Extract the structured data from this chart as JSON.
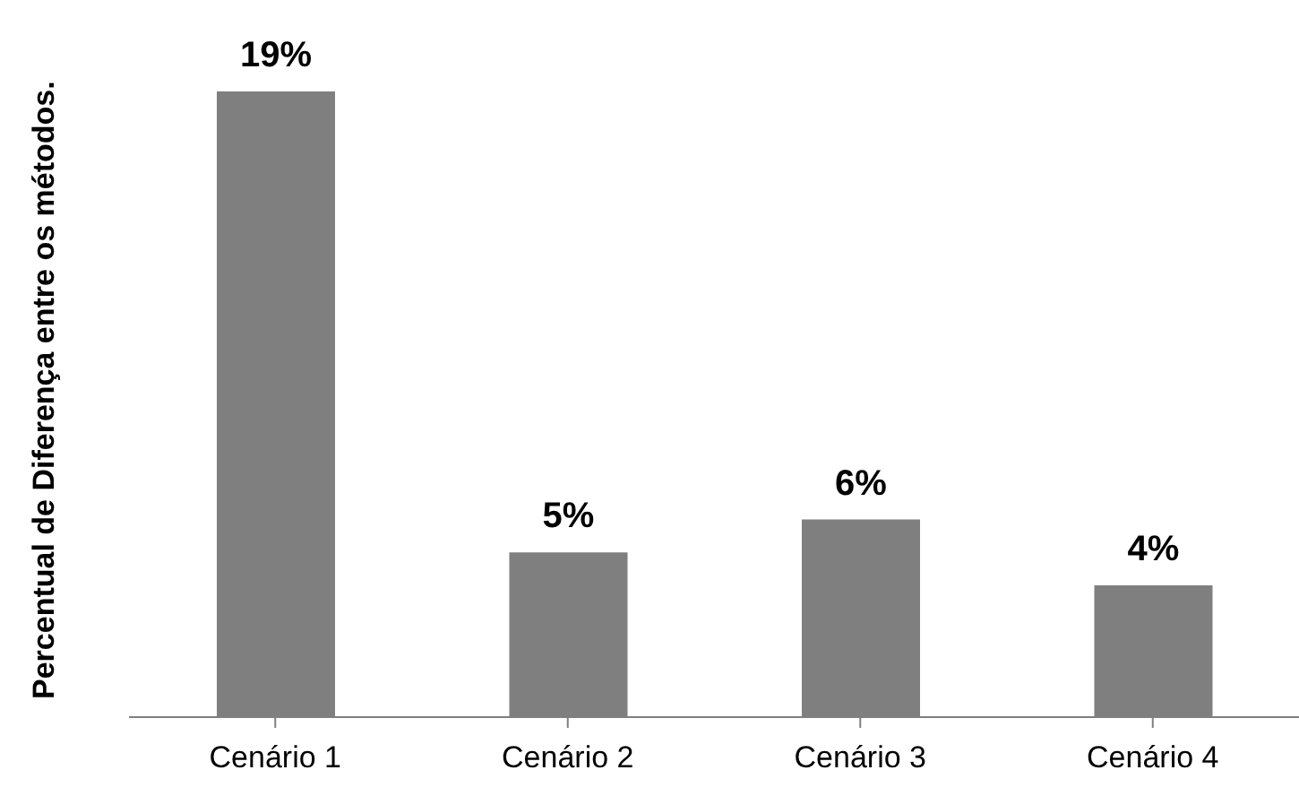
{
  "chart_data": {
    "type": "bar",
    "ylabel": "Percentual de Diferença entre os métodos.",
    "categories": [
      "Cenário 1",
      "Cenário 2",
      "Cenário 3",
      "Cenário 4"
    ],
    "values": [
      19,
      5,
      6,
      4
    ],
    "value_labels": [
      "19%",
      "5%",
      "6%",
      "4%"
    ],
    "color": "#7f7f7f",
    "tick_labels": "x",
    "grid": false
  }
}
